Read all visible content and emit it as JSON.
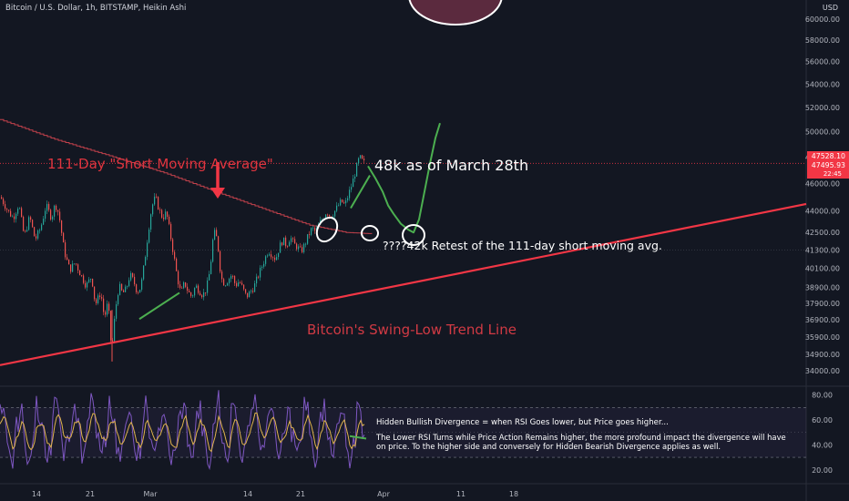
{
  "header": {
    "symbol_line": "Bitcoin / U.S. Dollar, 1h, BITSTAMP, Heikin Ashi",
    "currency": "USD"
  },
  "colors": {
    "background": "#131722",
    "up": "#26a69a",
    "down": "#ef5350",
    "trendline": "#f23645",
    "ma": "#c2414b",
    "rsi": "#7e57c2",
    "rsi_ma": "#e0b44c",
    "annotation_green": "#4caf50",
    "text": "#d1d4dc",
    "axis_text": "#b2b5be"
  },
  "price_badges": {
    "last": "47528.10",
    "close": "47495.93",
    "countdown": "22:45"
  },
  "annotations": {
    "ma_label": "111-Day \"Short Moving Average\"",
    "price_note": "48k as of March 28th",
    "retest_note": "????42k Retest of the 111-day short moving avg.",
    "trendline_label": "Bitcoin's Swing-Low Trend Line",
    "divergence_title": "Hidden Bullish Divergence = when RSI Goes lower, but Price goes higher...",
    "divergence_body_1": "The Lower RSI Turns while Price Action Remains higher, the more profound impact the divergence will have",
    "divergence_body_2": "on price.  To the higher side and conversely for Hidden Bearish Divergence applies as well."
  },
  "chart_data": [
    {
      "type": "candlestick",
      "title": "Bitcoin / U.S. Dollar, 1h, BITSTAMP, Heikin Ashi",
      "x_tick_labels": [
        "14",
        "21",
        "Mar",
        "14",
        "21",
        "Apr",
        "11",
        "18"
      ],
      "y_scale": "log",
      "y_ticks": [
        60000,
        58000,
        56000,
        54000,
        52000,
        50000,
        48000,
        46000,
        44000,
        42500,
        41300,
        40100,
        38900,
        37900,
        36900,
        35900,
        34900,
        34000
      ],
      "y_tick_labels": [
        "60000.00",
        "58000.00",
        "56000.00",
        "54000.00",
        "52000.00",
        "50000.00",
        "48000.00",
        "46000.00",
        "44000.00",
        "42500.00",
        "41300.00",
        "40100.00",
        "38900.00",
        "37900.00",
        "36900.00",
        "35900.00",
        "34900.00",
        "34000.00"
      ],
      "ylim": [
        33200,
        61500
      ],
      "price_path": [
        [
          0,
          45000
        ],
        [
          8,
          44000
        ],
        [
          14,
          43500
        ],
        [
          20,
          44500
        ],
        [
          26,
          42200
        ],
        [
          32,
          43600
        ],
        [
          38,
          42000
        ],
        [
          44,
          42800
        ],
        [
          50,
          44400
        ],
        [
          56,
          43500
        ],
        [
          60,
          44500
        ],
        [
          64,
          43800
        ],
        [
          70,
          41200
        ],
        [
          76,
          40000
        ],
        [
          82,
          40500
        ],
        [
          88,
          39700
        ],
        [
          94,
          39000
        ],
        [
          100,
          39600
        ],
        [
          104,
          37800
        ],
        [
          110,
          38600
        ],
        [
          114,
          37000
        ],
        [
          118,
          38000
        ],
        [
          122,
          35000
        ],
        [
          126,
          37500
        ],
        [
          130,
          39000
        ],
        [
          134,
          38500
        ],
        [
          138,
          38800
        ],
        [
          142,
          39700
        ],
        [
          146,
          39300
        ],
        [
          150,
          38600
        ],
        [
          154,
          38900
        ],
        [
          158,
          40500
        ],
        [
          162,
          42500
        ],
        [
          166,
          44300
        ],
        [
          170,
          45000
        ],
        [
          174,
          44100
        ],
        [
          178,
          43500
        ],
        [
          182,
          43900
        ],
        [
          186,
          42500
        ],
        [
          190,
          41000
        ],
        [
          194,
          39500
        ],
        [
          198,
          38500
        ],
        [
          202,
          39200
        ],
        [
          206,
          38600
        ],
        [
          210,
          38300
        ],
        [
          214,
          39000
        ],
        [
          218,
          38700
        ],
        [
          222,
          38400
        ],
        [
          226,
          38800
        ],
        [
          230,
          40000
        ],
        [
          234,
          42600
        ],
        [
          238,
          42000
        ],
        [
          242,
          39500
        ],
        [
          246,
          39100
        ],
        [
          250,
          39400
        ],
        [
          254,
          39700
        ],
        [
          258,
          39000
        ],
        [
          262,
          39300
        ],
        [
          266,
          38800
        ],
        [
          270,
          38300
        ],
        [
          274,
          38600
        ],
        [
          278,
          38900
        ],
        [
          282,
          39500
        ],
        [
          286,
          40100
        ],
        [
          290,
          40700
        ],
        [
          294,
          41300
        ],
        [
          298,
          41000
        ],
        [
          302,
          40700
        ],
        [
          306,
          41500
        ],
        [
          310,
          42000
        ],
        [
          314,
          41600
        ],
        [
          318,
          42200
        ],
        [
          322,
          41700
        ],
        [
          326,
          41500
        ],
        [
          330,
          41200
        ],
        [
          334,
          41700
        ],
        [
          338,
          42300
        ],
        [
          342,
          42800
        ],
        [
          346,
          42500
        ],
        [
          350,
          43100
        ],
        [
          354,
          43500
        ],
        [
          358,
          44000
        ],
        [
          362,
          43600
        ],
        [
          366,
          43900
        ],
        [
          370,
          44300
        ],
        [
          374,
          44700
        ],
        [
          378,
          44400
        ],
        [
          382,
          45200
        ],
        [
          386,
          46000
        ],
        [
          390,
          47000
        ],
        [
          394,
          48000
        ],
        [
          398,
          47600
        ],
        [
          400,
          47500
        ]
      ],
      "moving_average": {
        "name": "111-Day \"Short Moving Average\"",
        "points": [
          [
            0,
            51000
          ],
          [
            60,
            49400
          ],
          [
            120,
            48100
          ],
          [
            180,
            46800
          ],
          [
            240,
            45300
          ],
          [
            300,
            43900
          ],
          [
            340,
            43000
          ],
          [
            380,
            42500
          ],
          [
            410,
            42400
          ]
        ]
      },
      "trend_line": {
        "name": "Bitcoin's Swing-Low Trend Line",
        "points": [
          [
            0,
            34300
          ],
          [
            885,
            44500
          ]
        ]
      },
      "projection_path": [
        [
          404,
          47300
        ],
        [
          412,
          46400
        ],
        [
          420,
          45400
        ],
        [
          426,
          44400
        ],
        [
          432,
          43800
        ],
        [
          440,
          43100
        ],
        [
          448,
          42700
        ],
        [
          454,
          42500
        ],
        [
          460,
          43400
        ],
        [
          466,
          45400
        ],
        [
          472,
          47500
        ],
        [
          478,
          49500
        ],
        [
          483,
          50700
        ]
      ],
      "price_lines": [
        47528.1,
        47495.93,
        41300
      ]
    },
    {
      "type": "line",
      "title": "RSI",
      "y_ticks": [
        80,
        60,
        40,
        20
      ],
      "y_tick_labels": [
        "80.00",
        "60.00",
        "40.00",
        "20.00"
      ],
      "ylim": [
        14,
        87
      ],
      "bands": [
        30,
        70
      ],
      "oscillation_amplitude": [
        15,
        35
      ],
      "rsi_seed_end": 48
    }
  ]
}
